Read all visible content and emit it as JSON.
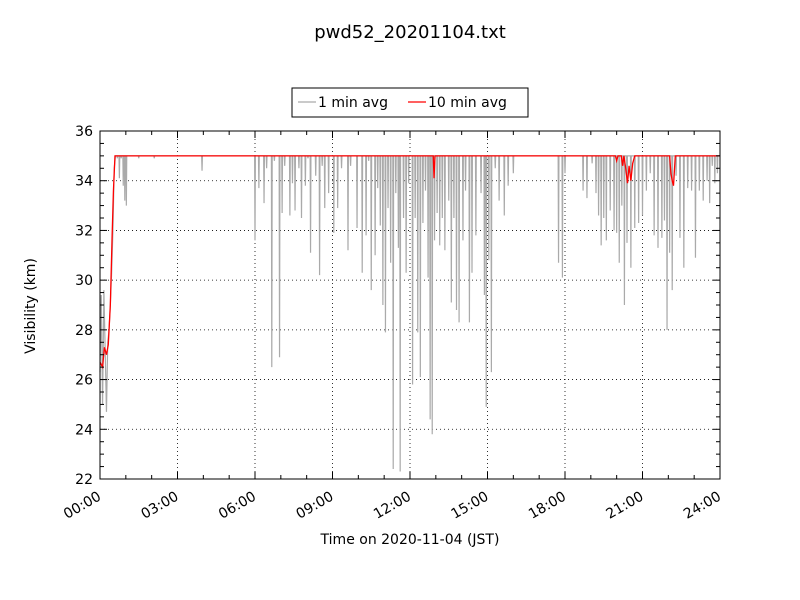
{
  "chart_data": {
    "type": "line",
    "title": "pwd52_20201104.txt",
    "xlabel": "Time on 2020-11-04 (JST)",
    "ylabel": "Visibility (km)",
    "x_ticks": [
      "00:00",
      "03:00",
      "06:00",
      "09:00",
      "12:00",
      "15:00",
      "18:00",
      "21:00",
      "24:00"
    ],
    "y_ticks": [
      "22",
      "24",
      "26",
      "28",
      "30",
      "32",
      "34",
      "36"
    ],
    "xlim_hours": [
      0,
      24
    ],
    "ylim": [
      22,
      36
    ],
    "grid": true,
    "legend_position": "above-center",
    "series": [
      {
        "name": "1 min avg",
        "color": "#aaaaaa",
        "baseline": 35,
        "early_values": [
          [
            0.0,
            26.3
          ],
          [
            0.05,
            29.4
          ],
          [
            0.1,
            25.0
          ],
          [
            0.15,
            29.6
          ],
          [
            0.2,
            27.2
          ],
          [
            0.25,
            24.7
          ],
          [
            0.3,
            27.5
          ],
          [
            0.35,
            28.0
          ],
          [
            0.4,
            29.0
          ],
          [
            0.45,
            30.3
          ],
          [
            0.5,
            32.0
          ],
          [
            0.55,
            34.5
          ],
          [
            0.6,
            35.0
          ]
        ],
        "dips": [
          [
            0.67,
            34.9
          ],
          [
            0.75,
            34.1
          ],
          [
            0.82,
            34.9
          ],
          [
            0.9,
            33.8
          ],
          [
            0.96,
            33.2
          ],
          [
            1.02,
            33.0
          ],
          [
            1.5,
            34.9
          ],
          [
            2.1,
            34.9
          ],
          [
            3.95,
            34.4
          ],
          [
            6.0,
            31.6
          ],
          [
            6.15,
            33.7
          ],
          [
            6.35,
            33.1
          ],
          [
            6.45,
            34.5
          ],
          [
            6.65,
            26.5
          ],
          [
            6.75,
            34.8
          ],
          [
            6.95,
            26.9
          ],
          [
            7.05,
            32.7
          ],
          [
            7.15,
            34.6
          ],
          [
            7.35,
            32.6
          ],
          [
            7.45,
            33.9
          ],
          [
            7.55,
            32.8
          ],
          [
            7.7,
            34.5
          ],
          [
            7.8,
            32.5
          ],
          [
            7.95,
            33.8
          ],
          [
            8.05,
            34.9
          ],
          [
            8.15,
            31.1
          ],
          [
            8.35,
            34.2
          ],
          [
            8.5,
            30.2
          ],
          [
            8.6,
            34.6
          ],
          [
            8.7,
            32.9
          ],
          [
            8.85,
            33.5
          ],
          [
            9.05,
            31.9
          ],
          [
            9.2,
            32.9
          ],
          [
            9.35,
            34.5
          ],
          [
            9.6,
            31.2
          ],
          [
            9.7,
            34.6
          ],
          [
            9.95,
            32.1
          ],
          [
            10.15,
            30.3
          ],
          [
            10.3,
            31.8
          ],
          [
            10.4,
            34.8
          ],
          [
            10.5,
            29.6
          ],
          [
            10.65,
            31.0
          ],
          [
            10.75,
            33.7
          ],
          [
            10.85,
            32.2
          ],
          [
            10.95,
            29.0
          ],
          [
            11.05,
            27.9
          ],
          [
            11.15,
            32.9
          ],
          [
            11.25,
            30.7
          ],
          [
            11.35,
            22.4
          ],
          [
            11.45,
            33.5
          ],
          [
            11.55,
            31.3
          ],
          [
            11.62,
            22.3
          ],
          [
            11.75,
            32.5
          ],
          [
            11.85,
            30.3
          ],
          [
            11.95,
            33.9
          ],
          [
            12.1,
            25.8
          ],
          [
            12.2,
            32.5
          ],
          [
            12.3,
            27.9
          ],
          [
            12.4,
            26.1
          ],
          [
            12.5,
            32.3
          ],
          [
            12.6,
            33.6
          ],
          [
            12.7,
            30.1
          ],
          [
            12.78,
            24.4
          ],
          [
            12.86,
            23.8
          ],
          [
            12.95,
            31.6
          ],
          [
            13.05,
            32.7
          ],
          [
            13.15,
            31.4
          ],
          [
            13.25,
            32.5
          ],
          [
            13.35,
            31.2
          ],
          [
            13.5,
            33.2
          ],
          [
            13.6,
            29.1
          ],
          [
            13.7,
            32.5
          ],
          [
            13.8,
            28.8
          ],
          [
            13.9,
            28.3
          ],
          [
            14.05,
            31.6
          ],
          [
            14.15,
            33.6
          ],
          [
            14.3,
            28.3
          ],
          [
            14.4,
            30.3
          ],
          [
            14.55,
            31.8
          ],
          [
            14.75,
            33.5
          ],
          [
            14.88,
            29.4
          ],
          [
            14.95,
            24.9
          ],
          [
            15.05,
            30.8
          ],
          [
            15.15,
            26.3
          ],
          [
            15.3,
            34.5
          ],
          [
            15.45,
            33.2
          ],
          [
            15.65,
            32.6
          ],
          [
            15.8,
            33.8
          ],
          [
            16.0,
            34.3
          ],
          [
            17.75,
            30.7
          ],
          [
            17.9,
            30.1
          ],
          [
            18.0,
            34.3
          ],
          [
            18.7,
            33.6
          ],
          [
            18.85,
            33.3
          ],
          [
            19.05,
            34.7
          ],
          [
            19.2,
            33.5
          ],
          [
            19.3,
            32.6
          ],
          [
            19.4,
            31.4
          ],
          [
            19.5,
            32.5
          ],
          [
            19.6,
            31.6
          ],
          [
            19.75,
            32.8
          ],
          [
            19.9,
            32.0
          ],
          [
            20.0,
            31.9
          ],
          [
            20.1,
            30.7
          ],
          [
            20.2,
            33.0
          ],
          [
            20.3,
            29.0
          ],
          [
            20.4,
            31.5
          ],
          [
            20.55,
            30.5
          ],
          [
            20.7,
            32.1
          ],
          [
            20.85,
            32.3
          ],
          [
            21.0,
            32.6
          ],
          [
            21.15,
            33.6
          ],
          [
            21.3,
            34.3
          ],
          [
            21.45,
            31.8
          ],
          [
            21.6,
            31.3
          ],
          [
            21.75,
            31.7
          ],
          [
            21.85,
            32.4
          ],
          [
            21.95,
            28.0
          ],
          [
            22.05,
            31.1
          ],
          [
            22.15,
            29.6
          ],
          [
            22.3,
            34.2
          ],
          [
            22.45,
            31.7
          ],
          [
            22.6,
            30.5
          ],
          [
            22.75,
            33.7
          ],
          [
            22.9,
            33.6
          ],
          [
            23.05,
            30.9
          ],
          [
            23.2,
            33.6
          ],
          [
            23.35,
            33.2
          ],
          [
            23.5,
            34.0
          ],
          [
            23.6,
            33.1
          ],
          [
            23.7,
            34.6
          ],
          [
            23.8,
            33.9
          ],
          [
            23.9,
            34.3
          ]
        ]
      },
      {
        "name": "10 min avg",
        "color": "#ff0000",
        "points": [
          [
            0.0,
            26.7
          ],
          [
            0.1,
            26.5
          ],
          [
            0.17,
            27.3
          ],
          [
            0.25,
            27.0
          ],
          [
            0.32,
            27.4
          ],
          [
            0.4,
            29.0
          ],
          [
            0.47,
            31.8
          ],
          [
            0.52,
            33.6
          ],
          [
            0.58,
            35.0
          ],
          [
            12.9,
            35.0
          ],
          [
            12.93,
            34.1
          ],
          [
            12.97,
            35.0
          ],
          [
            19.95,
            35.0
          ],
          [
            20.0,
            34.8
          ],
          [
            20.05,
            35.0
          ],
          [
            20.18,
            35.0
          ],
          [
            20.23,
            34.6
          ],
          [
            20.28,
            35.0
          ],
          [
            20.35,
            34.5
          ],
          [
            20.42,
            33.9
          ],
          [
            20.48,
            34.6
          ],
          [
            20.55,
            34.0
          ],
          [
            20.62,
            34.7
          ],
          [
            20.7,
            35.0
          ],
          [
            22.05,
            35.0
          ],
          [
            22.1,
            34.3
          ],
          [
            22.15,
            34.0
          ],
          [
            22.2,
            33.8
          ],
          [
            22.27,
            35.0
          ],
          [
            24.0,
            35.0
          ]
        ]
      }
    ]
  }
}
